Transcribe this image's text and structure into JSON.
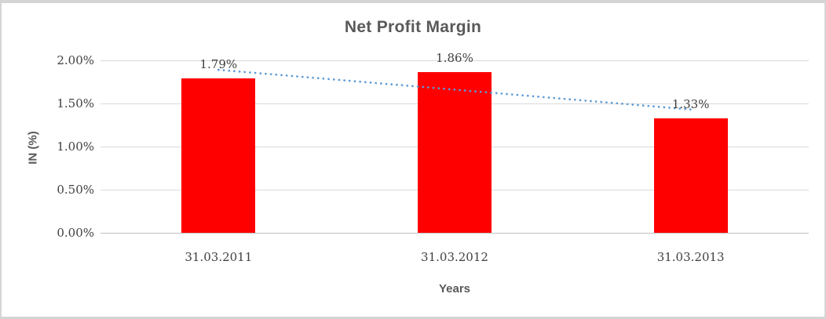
{
  "chart_data": {
    "type": "bar",
    "title": "Net Profit Margin",
    "xlabel": "Years",
    "ylabel": "IN (%)",
    "categories": [
      "31.03.2011",
      "31.03.2012",
      "31.03.2013"
    ],
    "values": [
      1.79,
      1.86,
      1.33
    ],
    "data_labels": [
      "1.79%",
      "1.86%",
      "1.33%"
    ],
    "yticks": [
      {
        "value": 0.0,
        "label": "0.00%"
      },
      {
        "value": 0.5,
        "label": "0.50%"
      },
      {
        "value": 1.0,
        "label": "1.00%"
      },
      {
        "value": 1.5,
        "label": "1.50%"
      },
      {
        "value": 2.0,
        "label": "2.00%"
      }
    ],
    "ylim": [
      0.0,
      2.0
    ],
    "grid": true,
    "legend_position": "none",
    "trendline": {
      "type": "linear",
      "style": "dotted"
    },
    "colors": {
      "bar": "#FF0000",
      "trendline": "#5B9BD5",
      "title": "#595959",
      "axis_title": "#595959",
      "tick_label": "#404040",
      "data_label": "#404040",
      "gridline": "#D9D9D9",
      "axis_line": "#BFBFBF",
      "chart_border": "#D5D5D5",
      "background": "#FFFFFF"
    }
  }
}
